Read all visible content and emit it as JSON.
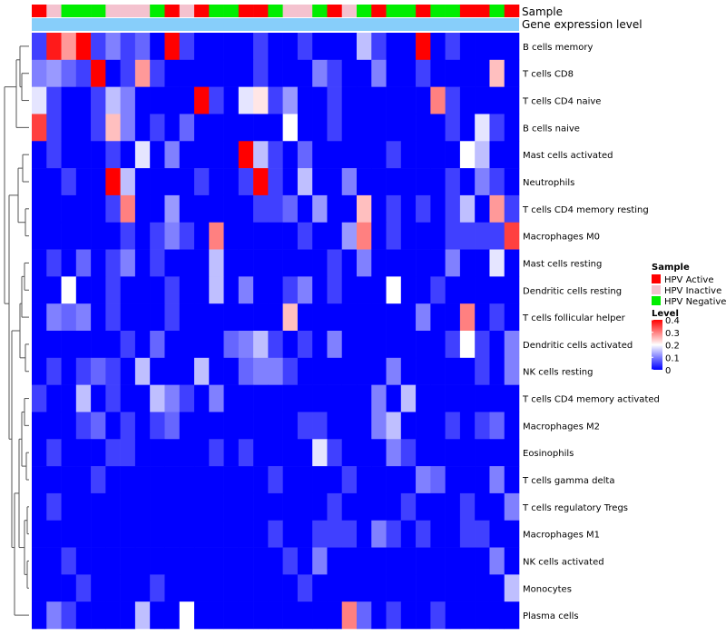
{
  "chart_data": {
    "type": "heatmap",
    "title": "",
    "annotation_labels": [
      "Sample",
      "Gene expression level"
    ],
    "sample_groups": [
      "A",
      "I",
      "N",
      "N",
      "N",
      "I",
      "I",
      "I",
      "N",
      "A",
      "I",
      "A",
      "N",
      "N",
      "A",
      "A",
      "N",
      "I",
      "I",
      "N",
      "A",
      "I",
      "N",
      "A",
      "N",
      "N",
      "A",
      "N",
      "N",
      "A",
      "A",
      "N",
      "A"
    ],
    "rows": [
      "B cells memory",
      "T cells CD8",
      "T cells CD4 naive",
      "B cells naive",
      "Mast cells activated",
      "Neutrophils",
      "T cells CD4 memory resting",
      "Macrophages M0",
      "Mast cells resting",
      "Dendritic cells resting",
      "T cells follicular helper",
      "Dendritic cells activated",
      "NK cells resting",
      "T cells CD4 memory activated",
      "Macrophages M2",
      "Eosinophils",
      "T cells gamma delta",
      "T cells regulatory  Tregs",
      "Macrophages M1",
      "NK cells activated",
      "Monocytes",
      "Plasma cells"
    ],
    "values": [
      [
        0.05,
        0.38,
        0.28,
        0.4,
        0.05,
        0.1,
        0.05,
        0.08,
        0.0,
        0.4,
        0.05,
        0.0,
        0.0,
        0.0,
        0.0,
        0.05,
        0.0,
        0.0,
        0.05,
        0.0,
        0.0,
        0.0,
        0.15,
        0.05,
        0.0,
        0.0,
        0.4,
        0.0,
        0.05,
        0.0,
        0.0,
        0.0,
        0.0
      ],
      [
        0.1,
        0.12,
        0.08,
        0.05,
        0.4,
        0.0,
        0.05,
        0.28,
        0.05,
        0.0,
        0.0,
        0.0,
        0.0,
        0.0,
        0.0,
        0.05,
        0.0,
        0.0,
        0.0,
        0.1,
        0.05,
        0.0,
        0.0,
        0.1,
        0.0,
        0.0,
        0.05,
        0.0,
        0.0,
        0.0,
        0.0,
        0.25,
        0.0
      ],
      [
        0.18,
        0.05,
        0.0,
        0.0,
        0.05,
        0.15,
        0.1,
        0.0,
        0.0,
        0.0,
        0.0,
        0.4,
        0.05,
        0.0,
        0.18,
        0.22,
        0.05,
        0.12,
        0.0,
        0.0,
        0.05,
        0.0,
        0.0,
        0.0,
        0.0,
        0.0,
        0.0,
        0.3,
        0.05,
        0.0,
        0.0,
        0.0,
        0.0
      ],
      [
        0.35,
        0.05,
        0.0,
        0.0,
        0.05,
        0.25,
        0.1,
        0.0,
        0.05,
        0.0,
        0.08,
        0.0,
        0.0,
        0.0,
        0.0,
        0.0,
        0.0,
        0.2,
        0.0,
        0.0,
        0.05,
        0.0,
        0.0,
        0.0,
        0.0,
        0.0,
        0.0,
        0.0,
        0.05,
        0.0,
        0.18,
        0.05,
        0.0
      ],
      [
        0.0,
        0.05,
        0.0,
        0.0,
        0.0,
        0.05,
        0.0,
        0.18,
        0.0,
        0.1,
        0.0,
        0.0,
        0.0,
        0.0,
        0.4,
        0.15,
        0.05,
        0.0,
        0.08,
        0.0,
        0.0,
        0.0,
        0.0,
        0.0,
        0.05,
        0.0,
        0.0,
        0.0,
        0.0,
        0.2,
        0.15,
        0.0,
        0.0
      ],
      [
        0.0,
        0.0,
        0.05,
        0.0,
        0.0,
        0.4,
        0.15,
        0.0,
        0.0,
        0.0,
        0.0,
        0.05,
        0.0,
        0.0,
        0.05,
        0.4,
        0.05,
        0.0,
        0.15,
        0.0,
        0.0,
        0.1,
        0.0,
        0.0,
        0.0,
        0.0,
        0.0,
        0.0,
        0.05,
        0.0,
        0.1,
        0.05,
        0.0
      ],
      [
        0.0,
        0.0,
        0.0,
        0.0,
        0.0,
        0.05,
        0.3,
        0.0,
        0.0,
        0.12,
        0.0,
        0.0,
        0.0,
        0.0,
        0.0,
        0.05,
        0.05,
        0.08,
        0.0,
        0.12,
        0.0,
        0.0,
        0.25,
        0.0,
        0.05,
        0.0,
        0.05,
        0.0,
        0.05,
        0.15,
        0.0,
        0.28,
        0.05
      ],
      [
        0.0,
        0.0,
        0.0,
        0.0,
        0.0,
        0.0,
        0.05,
        0.0,
        0.05,
        0.1,
        0.05,
        0.0,
        0.3,
        0.0,
        0.0,
        0.0,
        0.0,
        0.0,
        0.05,
        0.0,
        0.0,
        0.12,
        0.3,
        0.0,
        0.05,
        0.0,
        0.0,
        0.0,
        0.05,
        0.05,
        0.05,
        0.05,
        0.35
      ],
      [
        0.0,
        0.05,
        0.0,
        0.08,
        0.0,
        0.05,
        0.1,
        0.0,
        0.05,
        0.0,
        0.0,
        0.0,
        0.15,
        0.0,
        0.0,
        0.0,
        0.0,
        0.0,
        0.0,
        0.0,
        0.05,
        0.0,
        0.1,
        0.0,
        0.0,
        0.0,
        0.0,
        0.0,
        0.1,
        0.0,
        0.0,
        0.18,
        0.0
      ],
      [
        0.0,
        0.0,
        0.2,
        0.0,
        0.0,
        0.05,
        0.0,
        0.0,
        0.0,
        0.05,
        0.0,
        0.0,
        0.15,
        0.0,
        0.1,
        0.0,
        0.0,
        0.05,
        0.1,
        0.0,
        0.05,
        0.0,
        0.0,
        0.0,
        0.2,
        0.0,
        0.0,
        0.05,
        0.0,
        0.0,
        0.0,
        0.0,
        0.0
      ],
      [
        0.0,
        0.1,
        0.08,
        0.1,
        0.0,
        0.05,
        0.0,
        0.0,
        0.0,
        0.05,
        0.0,
        0.0,
        0.0,
        0.0,
        0.0,
        0.0,
        0.0,
        0.25,
        0.0,
        0.0,
        0.0,
        0.0,
        0.0,
        0.0,
        0.0,
        0.0,
        0.1,
        0.0,
        0.0,
        0.3,
        0.0,
        0.05,
        0.0
      ],
      [
        0.0,
        0.0,
        0.0,
        0.0,
        0.0,
        0.0,
        0.05,
        0.0,
        0.08,
        0.0,
        0.0,
        0.0,
        0.0,
        0.08,
        0.1,
        0.15,
        0.05,
        0.0,
        0.05,
        0.0,
        0.1,
        0.0,
        0.0,
        0.0,
        0.0,
        0.0,
        0.0,
        0.0,
        0.05,
        0.2,
        0.05,
        0.0,
        0.1
      ],
      [
        0.0,
        0.05,
        0.0,
        0.05,
        0.08,
        0.05,
        0.0,
        0.15,
        0.0,
        0.0,
        0.0,
        0.15,
        0.0,
        0.0,
        0.08,
        0.1,
        0.1,
        0.05,
        0.0,
        0.0,
        0.0,
        0.0,
        0.0,
        0.0,
        0.1,
        0.0,
        0.0,
        0.0,
        0.0,
        0.0,
        0.05,
        0.0,
        0.1
      ],
      [
        0.05,
        0.0,
        0.0,
        0.15,
        0.0,
        0.05,
        0.0,
        0.0,
        0.15,
        0.1,
        0.05,
        0.0,
        0.1,
        0.0,
        0.0,
        0.0,
        0.0,
        0.0,
        0.0,
        0.0,
        0.0,
        0.0,
        0.0,
        0.1,
        0.0,
        0.15,
        0.0,
        0.0,
        0.0,
        0.0,
        0.0,
        0.0,
        0.0
      ],
      [
        0.0,
        0.0,
        0.0,
        0.05,
        0.08,
        0.0,
        0.05,
        0.0,
        0.05,
        0.08,
        0.0,
        0.0,
        0.0,
        0.0,
        0.0,
        0.0,
        0.0,
        0.0,
        0.05,
        0.05,
        0.0,
        0.0,
        0.0,
        0.1,
        0.15,
        0.0,
        0.0,
        0.0,
        0.05,
        0.0,
        0.05,
        0.08,
        0.0
      ],
      [
        0.0,
        0.05,
        0.0,
        0.0,
        0.0,
        0.05,
        0.05,
        0.0,
        0.0,
        0.0,
        0.0,
        0.0,
        0.05,
        0.0,
        0.05,
        0.0,
        0.0,
        0.0,
        0.0,
        0.18,
        0.05,
        0.0,
        0.0,
        0.0,
        0.1,
        0.05,
        0.0,
        0.0,
        0.0,
        0.0,
        0.0,
        0.0,
        0.0
      ],
      [
        0.0,
        0.0,
        0.0,
        0.0,
        0.05,
        0.0,
        0.0,
        0.0,
        0.0,
        0.0,
        0.0,
        0.0,
        0.0,
        0.0,
        0.0,
        0.0,
        0.05,
        0.0,
        0.0,
        0.0,
        0.0,
        0.05,
        0.0,
        0.0,
        0.0,
        0.0,
        0.1,
        0.08,
        0.0,
        0.0,
        0.0,
        0.1,
        0.0
      ],
      [
        0.0,
        0.05,
        0.0,
        0.0,
        0.0,
        0.0,
        0.0,
        0.0,
        0.0,
        0.0,
        0.0,
        0.0,
        0.0,
        0.0,
        0.0,
        0.0,
        0.0,
        0.0,
        0.0,
        0.0,
        0.05,
        0.0,
        0.0,
        0.0,
        0.0,
        0.05,
        0.0,
        0.0,
        0.0,
        0.05,
        0.0,
        0.0,
        0.1
      ],
      [
        0.0,
        0.0,
        0.0,
        0.0,
        0.0,
        0.0,
        0.0,
        0.0,
        0.0,
        0.0,
        0.0,
        0.0,
        0.0,
        0.0,
        0.0,
        0.0,
        0.05,
        0.0,
        0.0,
        0.05,
        0.05,
        0.05,
        0.0,
        0.1,
        0.05,
        0.0,
        0.05,
        0.0,
        0.0,
        0.05,
        0.05,
        0.0,
        0.0
      ],
      [
        0.0,
        0.0,
        0.05,
        0.0,
        0.0,
        0.0,
        0.0,
        0.0,
        0.0,
        0.0,
        0.0,
        0.0,
        0.0,
        0.0,
        0.0,
        0.0,
        0.0,
        0.05,
        0.0,
        0.1,
        0.0,
        0.0,
        0.0,
        0.0,
        0.0,
        0.0,
        0.0,
        0.0,
        0.0,
        0.0,
        0.0,
        0.1,
        0.0
      ],
      [
        0.0,
        0.0,
        0.0,
        0.05,
        0.0,
        0.0,
        0.0,
        0.0,
        0.05,
        0.0,
        0.0,
        0.0,
        0.0,
        0.0,
        0.0,
        0.0,
        0.0,
        0.0,
        0.05,
        0.0,
        0.0,
        0.0,
        0.0,
        0.0,
        0.0,
        0.0,
        0.0,
        0.0,
        0.0,
        0.0,
        0.0,
        0.0,
        0.15
      ],
      [
        0.0,
        0.1,
        0.05,
        0.0,
        0.0,
        0.0,
        0.0,
        0.15,
        0.0,
        0.0,
        0.2,
        0.0,
        0.0,
        0.0,
        0.0,
        0.0,
        0.0,
        0.0,
        0.0,
        0.0,
        0.0,
        0.3,
        0.08,
        0.0,
        0.05,
        0.0,
        0.0,
        0.05,
        0.0,
        0.0,
        0.0,
        0.0,
        0.0
      ]
    ],
    "color_scale": {
      "min": 0,
      "max": 0.4,
      "colors": [
        "#0000ff",
        "#ffffff",
        "#ff0000"
      ]
    },
    "legend_sample": {
      "title": "Sample",
      "items": [
        {
          "key": "A",
          "label": "HPV Active",
          "color": "#ff0000"
        },
        {
          "key": "I",
          "label": "HPV Inactive",
          "color": "#f4c2cf"
        },
        {
          "key": "N",
          "label": "HPV Negative",
          "color": "#00ee00"
        }
      ]
    },
    "legend_level": {
      "title": "Level",
      "ticks": [
        "0.4",
        "0.3",
        "0.2",
        "0.1",
        "0"
      ],
      "tick_values": [
        0.4,
        0.3,
        0.2,
        0.1,
        0
      ]
    },
    "gene_expression_color": "#87cefa"
  }
}
